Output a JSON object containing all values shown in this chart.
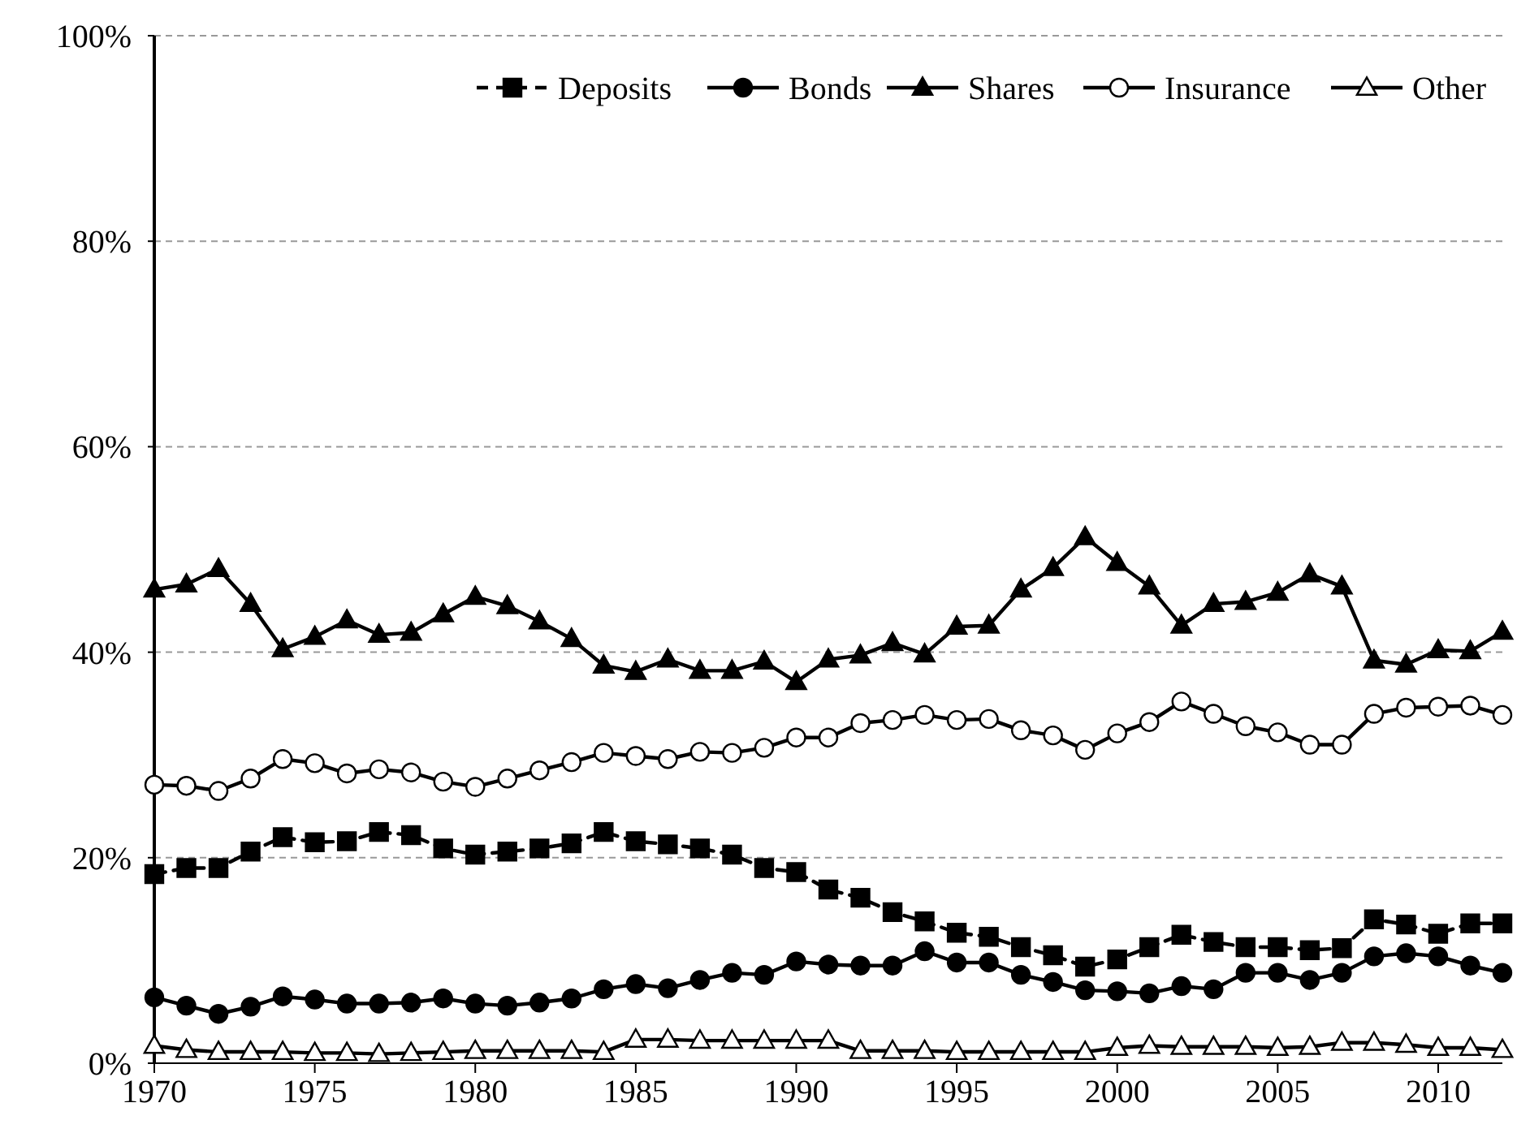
{
  "chart_data": {
    "type": "line",
    "x": [
      1970,
      1971,
      1972,
      1973,
      1974,
      1975,
      1976,
      1977,
      1978,
      1979,
      1980,
      1981,
      1982,
      1983,
      1984,
      1985,
      1986,
      1987,
      1988,
      1989,
      1990,
      1991,
      1992,
      1993,
      1994,
      1995,
      1996,
      1997,
      1998,
      1999,
      2000,
      2001,
      2002,
      2003,
      2004,
      2005,
      2006,
      2007,
      2008,
      2009,
      2010,
      2011,
      2012
    ],
    "xlim": [
      1970,
      2012
    ],
    "xticks": [
      1970,
      1975,
      1980,
      1985,
      1990,
      1995,
      2000,
      2005,
      2010
    ],
    "ylim": [
      0,
      100
    ],
    "yticks": [
      {
        "value": 0,
        "label": "0%"
      },
      {
        "value": 20,
        "label": "20%"
      },
      {
        "value": 40,
        "label": "40%"
      },
      {
        "value": 60,
        "label": "60%"
      },
      {
        "value": 80,
        "label": "80%"
      },
      {
        "value": 100,
        "label": "100%"
      }
    ],
    "grid": "y",
    "legend": "top right",
    "series": [
      {
        "name": "Deposits",
        "color": "#000000",
        "marker": "square",
        "line_style": "dashed",
        "values": [
          18.4,
          19.0,
          19.0,
          20.6,
          22.0,
          21.5,
          21.6,
          22.5,
          22.2,
          20.9,
          20.3,
          20.6,
          20.9,
          21.4,
          22.5,
          21.6,
          21.3,
          20.9,
          20.3,
          19.0,
          18.6,
          16.9,
          16.1,
          14.7,
          13.8,
          12.7,
          12.3,
          11.3,
          10.5,
          9.4,
          10.1,
          11.3,
          12.5,
          11.8,
          11.3,
          11.3,
          11.0,
          11.2,
          14.0,
          13.5,
          12.6,
          13.6,
          13.6
        ]
      },
      {
        "name": "Bonds",
        "color": "#000000",
        "marker": "circle",
        "line_style": "solid",
        "values": [
          6.4,
          5.6,
          4.8,
          5.5,
          6.5,
          6.2,
          5.8,
          5.8,
          5.9,
          6.3,
          5.8,
          5.6,
          5.9,
          6.3,
          7.2,
          7.7,
          7.3,
          8.1,
          8.8,
          8.6,
          9.9,
          9.6,
          9.5,
          9.5,
          10.9,
          9.8,
          9.8,
          8.6,
          7.9,
          7.1,
          7.0,
          6.8,
          7.5,
          7.2,
          8.8,
          8.8,
          8.1,
          8.8,
          10.4,
          10.7,
          10.4,
          9.5,
          8.8
        ]
      },
      {
        "name": "Shares",
        "color": "#000000",
        "marker": "triangle",
        "line_style": "solid",
        "values": [
          46.1,
          46.6,
          48.1,
          44.7,
          40.3,
          41.5,
          43.1,
          41.7,
          41.9,
          43.7,
          45.4,
          44.5,
          43.0,
          41.3,
          38.7,
          38.1,
          39.3,
          38.2,
          38.2,
          39.1,
          37.1,
          39.3,
          39.7,
          40.9,
          39.8,
          42.5,
          42.6,
          46.1,
          48.2,
          51.2,
          48.7,
          46.4,
          42.6,
          44.7,
          44.9,
          45.8,
          47.6,
          46.4,
          39.2,
          38.8,
          40.2,
          40.1,
          42.0
        ]
      },
      {
        "name": "Insurance",
        "color": "#ffffff",
        "marker": "circle",
        "line_style": "solid",
        "values": [
          27.1,
          27.0,
          26.5,
          27.7,
          29.6,
          29.2,
          28.2,
          28.6,
          28.3,
          27.4,
          26.9,
          27.7,
          28.5,
          29.3,
          30.2,
          29.9,
          29.6,
          30.3,
          30.2,
          30.7,
          31.7,
          31.7,
          33.1,
          33.4,
          33.9,
          33.4,
          33.5,
          32.4,
          31.9,
          30.5,
          32.1,
          33.2,
          35.2,
          34.0,
          32.8,
          32.2,
          31.0,
          31.0,
          34.0,
          34.6,
          34.7,
          34.8,
          33.9
        ]
      },
      {
        "name": "Other",
        "color": "#ffffff",
        "marker": "triangle",
        "line_style": "solid",
        "values": [
          1.7,
          1.3,
          1.1,
          1.1,
          1.1,
          1.0,
          1.0,
          0.9,
          1.0,
          1.1,
          1.2,
          1.2,
          1.2,
          1.2,
          1.1,
          2.3,
          2.3,
          2.2,
          2.2,
          2.2,
          2.2,
          2.2,
          1.2,
          1.2,
          1.2,
          1.1,
          1.1,
          1.1,
          1.1,
          1.1,
          1.5,
          1.7,
          1.6,
          1.6,
          1.6,
          1.5,
          1.6,
          2.0,
          2.0,
          1.8,
          1.5,
          1.5,
          1.3
        ]
      }
    ]
  }
}
